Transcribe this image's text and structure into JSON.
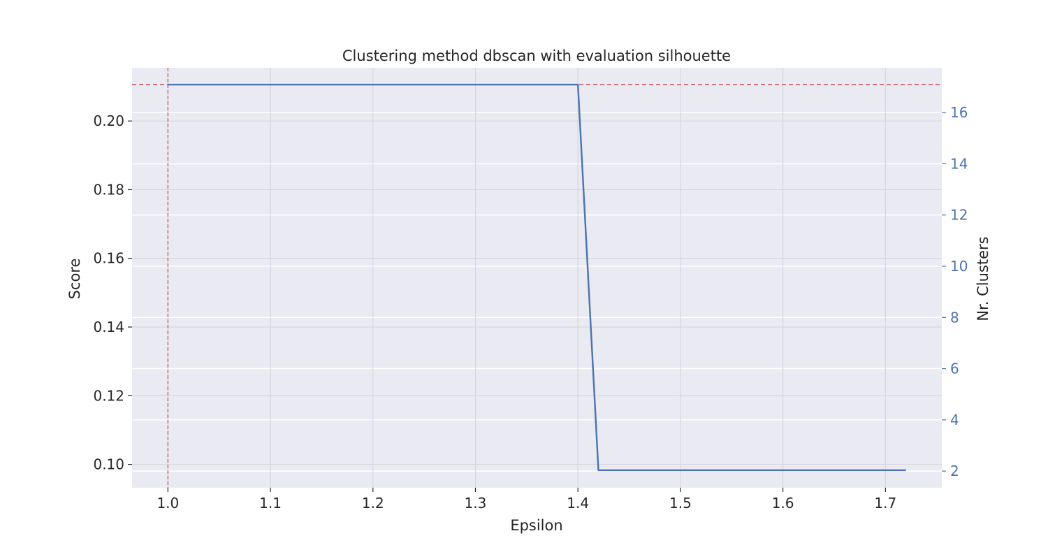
{
  "chart_data": {
    "type": "line",
    "title": "Clustering method dbscan with evaluation silhouette",
    "xlabel": "Epsilon",
    "ylabel": "Score",
    "y2label": "Nr. Clusters",
    "xlim": [
      0.965,
      1.755
    ],
    "ylim": [
      0.0932,
      0.2155
    ],
    "y2lim": [
      1.35,
      17.75
    ],
    "x_ticks": [
      "1.0",
      "1.1",
      "1.2",
      "1.3",
      "1.4",
      "1.5",
      "1.6",
      "1.7"
    ],
    "y_ticks": [
      "0.10",
      "0.12",
      "0.14",
      "0.16",
      "0.18",
      "0.20"
    ],
    "y2_ticks": [
      "2",
      "4",
      "6",
      "8",
      "10",
      "12",
      "14",
      "16"
    ],
    "grid": true,
    "series": [
      {
        "axis": "y",
        "x": [
          1.0,
          1.02,
          1.04,
          1.06,
          1.08,
          1.1,
          1.12,
          1.14,
          1.16,
          1.18,
          1.2,
          1.22,
          1.24,
          1.26,
          1.28,
          1.3,
          1.32,
          1.34,
          1.36,
          1.38,
          1.4,
          1.42,
          1.44,
          1.46,
          1.48,
          1.5,
          1.52,
          1.54,
          1.56,
          1.58,
          1.6,
          1.62,
          1.64,
          1.66,
          1.68,
          1.7,
          1.72
        ],
        "values": [
          0.2106,
          0.2106,
          0.2106,
          0.2106,
          0.2106,
          0.2106,
          0.2106,
          0.2106,
          0.2106,
          0.2106,
          0.2106,
          0.2106,
          0.2106,
          0.2106,
          0.2106,
          0.2106,
          0.2106,
          0.2106,
          0.2106,
          0.2106,
          0.2106,
          0.0983,
          0.0983,
          0.0983,
          0.0983,
          0.0983,
          0.0983,
          0.0983,
          0.0983,
          0.0983,
          0.0983,
          0.0983,
          0.0983,
          0.0983,
          0.0983,
          0.0983,
          0.0983
        ],
        "color": "#4c72b0"
      }
    ],
    "reference_lines": [
      {
        "orientation": "horizontal",
        "axis": "y",
        "value": 0.2106,
        "color": "#c44e52",
        "style": "dashed"
      },
      {
        "orientation": "vertical",
        "axis": "x",
        "value": 1.0,
        "color": "#c44e52",
        "style": "dashed"
      }
    ],
    "colors": {
      "plot_background": "#eaeaf2",
      "grid": "#ffffff",
      "secondary_axis": "#4c72b0",
      "reference": "#c44e52"
    }
  }
}
